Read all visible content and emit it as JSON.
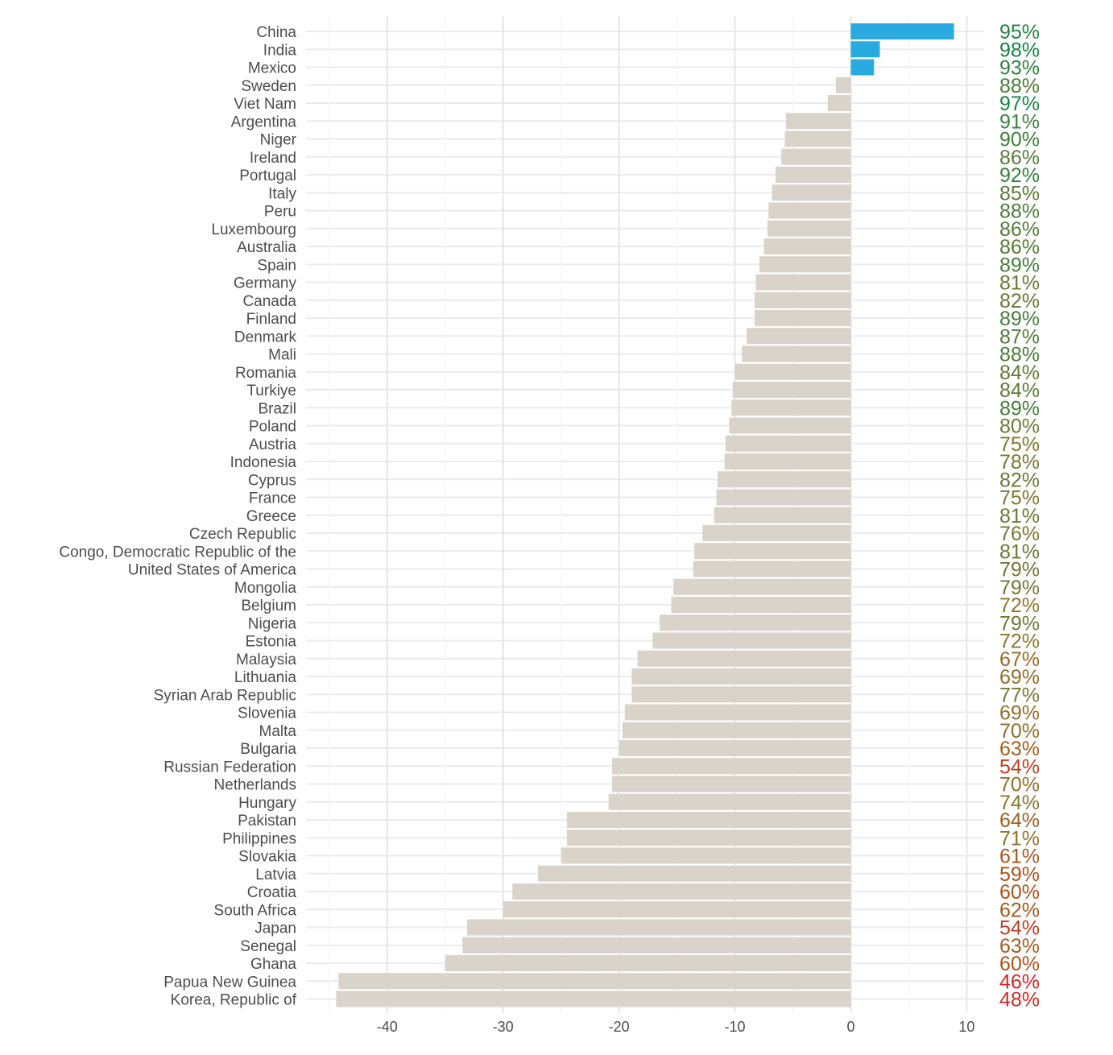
{
  "chart_data": {
    "type": "bar",
    "orientation": "horizontal",
    "xlim": [
      -47,
      11.5
    ],
    "x_ticks": [
      -40,
      -30,
      -20,
      -10,
      0,
      10
    ],
    "grid": true,
    "colors": {
      "positive": "#29abe2",
      "negative": "#d9d3ca"
    },
    "categories": [
      "China",
      "India",
      "Mexico",
      "Sweden",
      "Viet Nam",
      "Argentina",
      "Niger",
      "Ireland",
      "Portugal",
      "Italy",
      "Peru",
      "Luxembourg",
      "Australia",
      "Spain",
      "Germany",
      "Canada",
      "Finland",
      "Denmark",
      "Mali",
      "Romania",
      "Turkiye",
      "Brazil",
      "Poland",
      "Austria",
      "Indonesia",
      "Cyprus",
      "France",
      "Greece",
      "Czech Republic",
      "Congo, Democratic Republic of the",
      "United States of America",
      "Mongolia",
      "Belgium",
      "Nigeria",
      "Estonia",
      "Malaysia",
      "Lithuania",
      "Syrian Arab Republic",
      "Slovenia",
      "Malta",
      "Bulgaria",
      "Russian Federation",
      "Netherlands",
      "Hungary",
      "Pakistan",
      "Philippines",
      "Slovakia",
      "Latvia",
      "Croatia",
      "South Africa",
      "Japan",
      "Senegal",
      "Ghana",
      "Papua New Guinea",
      "Korea, Republic of"
    ],
    "values": [
      8.9,
      2.5,
      2.0,
      -1.3,
      -2.0,
      -5.6,
      -5.7,
      -6.0,
      -6.5,
      -6.8,
      -7.1,
      -7.2,
      -7.5,
      -7.9,
      -8.2,
      -8.3,
      -8.3,
      -9.0,
      -9.4,
      -10.0,
      -10.2,
      -10.3,
      -10.5,
      -10.8,
      -10.9,
      -11.5,
      -11.6,
      -11.8,
      -12.8,
      -13.5,
      -13.6,
      -15.3,
      -15.5,
      -16.5,
      -17.1,
      -18.4,
      -18.9,
      -18.9,
      -19.5,
      -19.7,
      -20.0,
      -20.6,
      -20.6,
      -20.9,
      -24.5,
      -24.5,
      -25.0,
      -27.0,
      -29.2,
      -30.0,
      -33.1,
      -33.5,
      -35.0,
      -44.2,
      -44.4
    ],
    "annotations": [
      "95%",
      "98%",
      "93%",
      "88%",
      "97%",
      "91%",
      "90%",
      "86%",
      "92%",
      "85%",
      "88%",
      "86%",
      "86%",
      "89%",
      "81%",
      "82%",
      "89%",
      "87%",
      "88%",
      "84%",
      "84%",
      "89%",
      "80%",
      "75%",
      "78%",
      "82%",
      "75%",
      "81%",
      "76%",
      "81%",
      "79%",
      "79%",
      "72%",
      "79%",
      "72%",
      "67%",
      "69%",
      "77%",
      "69%",
      "70%",
      "63%",
      "54%",
      "70%",
      "74%",
      "64%",
      "71%",
      "61%",
      "59%",
      "60%",
      "62%",
      "54%",
      "63%",
      "60%",
      "46%",
      "48%"
    ]
  }
}
